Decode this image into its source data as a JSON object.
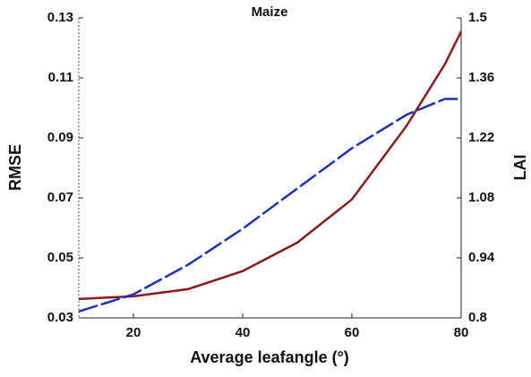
{
  "chart_data": {
    "type": "line",
    "title": "Maize",
    "x_label": "Average leafangle (°)",
    "y_label": "RMSE",
    "y2_label": "LAI",
    "x": [
      10,
      20,
      30,
      40,
      50,
      60,
      70,
      77,
      80
    ],
    "series": [
      {
        "name": "RMSE",
        "color": "#8b1a1a",
        "axis": "y",
        "dash": false,
        "values": [
          0.0363,
          0.0372,
          0.0396,
          0.0456,
          0.0551,
          0.0695,
          0.094,
          0.1145,
          0.1255
        ]
      },
      {
        "name": "LAI",
        "color": "#1f2fbf",
        "axis": "y2",
        "dash": true,
        "values": [
          0.815,
          0.855,
          0.924,
          1.008,
          1.102,
          1.196,
          1.274,
          1.311,
          1.311
        ]
      }
    ],
    "xlim": [
      10,
      80
    ],
    "xticks": [
      20,
      40,
      60,
      80
    ],
    "ylim": [
      0.03,
      0.13
    ],
    "yticks": [
      0.03,
      0.05,
      0.07,
      0.09,
      0.11,
      0.13
    ],
    "y2lim": [
      0.8,
      1.5
    ],
    "y2ticks": [
      0.8,
      0.94,
      1.08,
      1.22,
      1.36,
      1.5
    ]
  }
}
